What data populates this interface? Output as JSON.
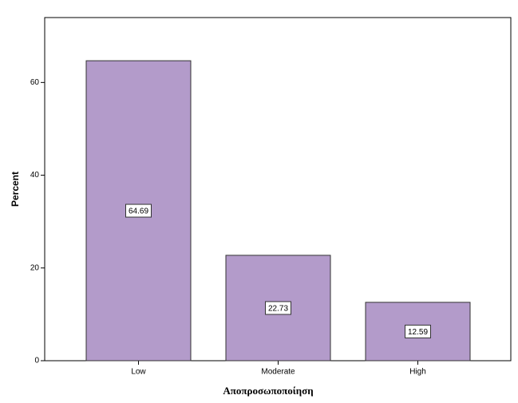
{
  "chart_data": {
    "type": "bar",
    "categories": [
      "Low",
      "Moderate",
      "High"
    ],
    "values": [
      64.69,
      22.73,
      12.59
    ],
    "color": "#b39bca",
    "ylim": [
      0,
      74
    ],
    "yticks": [
      0,
      20,
      40,
      60
    ],
    "y_label": "Percent",
    "x_label": "Αποπροσωποποίηση",
    "data_labels": true
  }
}
